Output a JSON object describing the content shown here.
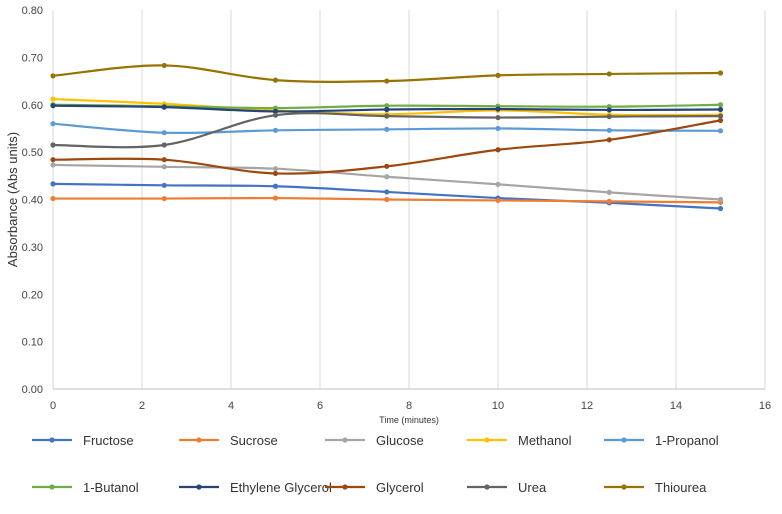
{
  "chart_data": {
    "type": "line",
    "title": "",
    "xlabel": "Time (minutes)",
    "ylabel": "Absorbance (Abs units)",
    "xlim": [
      0,
      16
    ],
    "ylim": [
      0,
      0.8
    ],
    "x_ticks": [
      "0",
      "2",
      "4",
      "6",
      "8",
      "10",
      "12",
      "14",
      "16"
    ],
    "y_ticks": [
      "0.00",
      "0.10",
      "0.20",
      "0.30",
      "0.40",
      "0.50",
      "0.60",
      "0.70",
      "0.80"
    ],
    "grid": "vertical",
    "legend": "bottom",
    "x": [
      0,
      2.5,
      5,
      7.5,
      10,
      12.5,
      15
    ],
    "series": [
      {
        "name": "Fructose",
        "color": "#4472C4",
        "values": [
          0.433,
          0.43,
          0.428,
          0.416,
          0.403,
          0.393,
          0.381
        ]
      },
      {
        "name": "Sucrose",
        "color": "#ED7D31",
        "values": [
          0.402,
          0.402,
          0.403,
          0.4,
          0.398,
          0.396,
          0.394
        ]
      },
      {
        "name": "Glucose",
        "color": "#A5A5A5",
        "values": [
          0.473,
          0.469,
          0.465,
          0.448,
          0.432,
          0.415,
          0.4
        ]
      },
      {
        "name": "Methanol",
        "color": "#FFC000",
        "values": [
          0.612,
          0.602,
          0.588,
          0.58,
          0.588,
          0.579,
          0.579
        ]
      },
      {
        "name": "1-Propanol",
        "color": "#5B9BD5",
        "values": [
          0.56,
          0.541,
          0.546,
          0.548,
          0.55,
          0.546,
          0.545
        ]
      },
      {
        "name": "1-Butanol",
        "color": "#70AD47",
        "values": [
          0.6,
          0.597,
          0.593,
          0.598,
          0.597,
          0.596,
          0.6
        ]
      },
      {
        "name": "Ethylene Glycerol",
        "color": "#264478",
        "values": [
          0.598,
          0.595,
          0.586,
          0.59,
          0.591,
          0.589,
          0.59
        ]
      },
      {
        "name": "Glycerol",
        "color": "#9E480E",
        "values": [
          0.484,
          0.484,
          0.455,
          0.47,
          0.505,
          0.526,
          0.567
        ]
      },
      {
        "name": "Urea",
        "color": "#636363",
        "values": [
          0.515,
          0.515,
          0.578,
          0.576,
          0.573,
          0.575,
          0.576
        ]
      },
      {
        "name": "Thiourea",
        "color": "#997300",
        "values": [
          0.661,
          0.683,
          0.652,
          0.65,
          0.662,
          0.665,
          0.667
        ]
      }
    ]
  }
}
